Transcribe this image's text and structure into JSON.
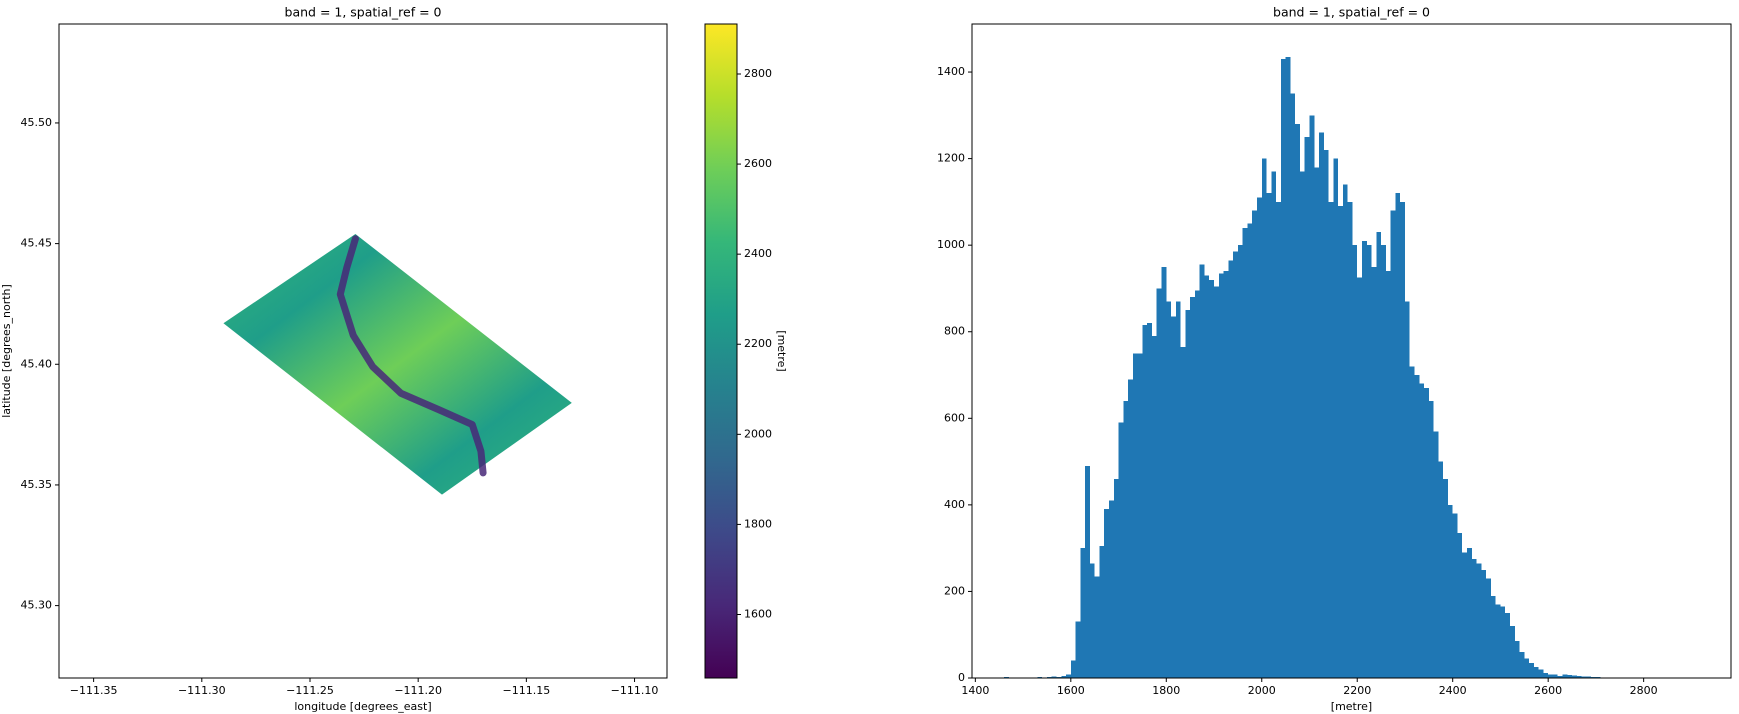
{
  "chart_data": [
    {
      "type": "image",
      "title": "band = 1, spatial_ref = 0",
      "xlabel": "longitude [degrees_east]",
      "ylabel": "latitude [degrees_north]",
      "xlim": [
        -111.366,
        -111.085
      ],
      "ylim": [
        45.27,
        45.541
      ],
      "xticks": [
        {
          "value": -111.35,
          "label": "−111.35"
        },
        {
          "value": -111.3,
          "label": "−111.30"
        },
        {
          "value": -111.25,
          "label": "−111.25"
        },
        {
          "value": -111.2,
          "label": "−111.20"
        },
        {
          "value": -111.15,
          "label": "−111.15"
        },
        {
          "value": -111.1,
          "label": "−111.10"
        }
      ],
      "yticks": [
        {
          "value": 45.3,
          "label": "45.30"
        },
        45.35,
        {
          "value": 45.4,
          "label": "45.40"
        },
        45.45,
        {
          "value": 45.5,
          "label": "45.50"
        }
      ],
      "colormap": [
        "#440154",
        "#482878",
        "#3e4989",
        "#31688e",
        "#26828e",
        "#1f9e89",
        "#35b779",
        "#6ece58",
        "#b5de2b",
        "#fde725"
      ],
      "colorbar": {
        "label": "[metre]",
        "lim": [
          1459,
          2911
        ],
        "ticks": [
          1600,
          1800,
          2000,
          2200,
          2400,
          2600,
          2800
        ]
      },
      "footprint": {
        "lon": [
          -111.29,
          -111.229,
          -111.129,
          -111.189
        ],
        "lat": [
          45.417,
          45.454,
          45.384,
          45.346
        ]
      },
      "valley": {
        "lon": [
          -111.229,
          -111.233,
          -111.236,
          -111.23,
          -111.221,
          -111.208,
          -111.19,
          -111.175,
          -111.171,
          -111.17
        ],
        "lat": [
          45.452,
          45.44,
          45.429,
          45.412,
          45.399,
          45.388,
          45.381,
          45.375,
          45.364,
          45.355
        ]
      }
    },
    {
      "type": "histogram",
      "title": "band = 1, spatial_ref = 0",
      "xlabel": "[metre]",
      "color": "#1f77b4",
      "xlim": [
        1393,
        2983
      ],
      "ylim": [
        0,
        1511
      ],
      "xticks": [
        1400,
        1600,
        1800,
        2000,
        2200,
        2400,
        2600,
        2800
      ],
      "yticks": [
        0,
        200,
        400,
        600,
        800,
        1000,
        1200,
        1400
      ],
      "bins": [
        1460,
        1470,
        1480,
        1490,
        1500,
        1510,
        1520,
        1530,
        1540,
        1550,
        1560,
        1570,
        1580,
        1590,
        1600,
        1610,
        1620,
        1630,
        1640,
        1650,
        1660,
        1670,
        1680,
        1690,
        1700,
        1710,
        1720,
        1730,
        1740,
        1750,
        1760,
        1770,
        1780,
        1790,
        1800,
        1810,
        1820,
        1830,
        1840,
        1850,
        1860,
        1870,
        1880,
        1890,
        1900,
        1910,
        1920,
        1930,
        1940,
        1950,
        1960,
        1970,
        1980,
        1990,
        2000,
        2010,
        2020,
        2030,
        2040,
        2050,
        2060,
        2070,
        2080,
        2090,
        2100,
        2110,
        2120,
        2130,
        2140,
        2150,
        2160,
        2170,
        2180,
        2190,
        2200,
        2210,
        2220,
        2230,
        2240,
        2250,
        2260,
        2270,
        2280,
        2290,
        2300,
        2310,
        2320,
        2330,
        2340,
        2350,
        2360,
        2370,
        2380,
        2390,
        2400,
        2410,
        2420,
        2430,
        2440,
        2450,
        2460,
        2470,
        2480,
        2490,
        2500,
        2510,
        2520,
        2530,
        2540,
        2550,
        2560,
        2570,
        2580,
        2590,
        2600,
        2610,
        2620,
        2630,
        2640,
        2650,
        2660,
        2670,
        2680,
        2690,
        2700,
        2710,
        2720,
        2730,
        2740,
        2750,
        2760,
        2770,
        2780,
        2790,
        2800,
        2810,
        2820,
        2830,
        2840,
        2850,
        2860,
        2870,
        2880,
        2890,
        2900,
        2910
      ],
      "counts": [
        2,
        0,
        0,
        0,
        0,
        0,
        1,
        2,
        1,
        2,
        3,
        2,
        5,
        8,
        40,
        130,
        300,
        490,
        265,
        235,
        305,
        390,
        410,
        460,
        590,
        640,
        690,
        750,
        750,
        815,
        820,
        790,
        900,
        950,
        870,
        835,
        870,
        765,
        850,
        880,
        895,
        955,
        930,
        920,
        905,
        935,
        940,
        965,
        985,
        1000,
        1040,
        1050,
        1080,
        1110,
        1200,
        1120,
        1170,
        1100,
        1430,
        1435,
        1350,
        1280,
        1170,
        1250,
        1300,
        1180,
        1260,
        1220,
        1100,
        1200,
        1090,
        1140,
        1100,
        1000,
        925,
        1010,
        1000,
        950,
        1030,
        1000,
        940,
        1080,
        1120,
        1100,
        870,
        720,
        700,
        680,
        670,
        640,
        570,
        500,
        460,
        400,
        380,
        335,
        290,
        300,
        275,
        265,
        250,
        230,
        190,
        170,
        165,
        150,
        120,
        85,
        60,
        45,
        35,
        25,
        20,
        12,
        8,
        8,
        5,
        8,
        7,
        6,
        5,
        3,
        3,
        2,
        2,
        1,
        1,
        1,
        0,
        1,
        0,
        0,
        0,
        0,
        1,
        0,
        0,
        0,
        0,
        1,
        1,
        0,
        1,
        1,
        1
      ]
    }
  ]
}
